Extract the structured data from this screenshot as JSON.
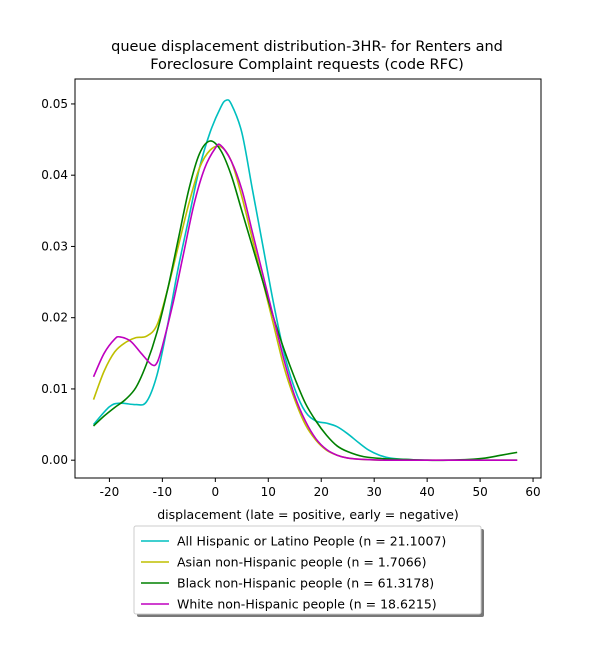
{
  "chart_data": {
    "type": "line",
    "title": [
      "queue displacement distribution-3HR-  for Renters and",
      "Foreclosure Complaint  requests (code RFC)"
    ],
    "xlabel": "displacement (late = positive, early = negative)",
    "ylabel": "",
    "xlim": [
      -26.5,
      61.5
    ],
    "ylim": [
      -0.0025,
      0.0535
    ],
    "xticks": [
      -20,
      -10,
      0,
      10,
      20,
      30,
      40,
      50,
      60
    ],
    "yticks": [
      0.0,
      0.01,
      0.02,
      0.03,
      0.04,
      0.05
    ],
    "ytick_labels": [
      "0.00",
      "0.01",
      "0.02",
      "0.03",
      "0.04",
      "0.05"
    ],
    "legend_position": "below",
    "series": [
      {
        "name": "All Hispanic or Latino People (n = 21.1007)",
        "color": "#00bfbf",
        "points": [
          [
            -23,
            0.005
          ],
          [
            -20,
            0.0075
          ],
          [
            -18,
            0.008
          ],
          [
            -15,
            0.0078
          ],
          [
            -13,
            0.0082
          ],
          [
            -11,
            0.012
          ],
          [
            -9,
            0.019
          ],
          [
            -7,
            0.027
          ],
          [
            -5,
            0.034
          ],
          [
            -3,
            0.041
          ],
          [
            -1,
            0.046
          ],
          [
            1,
            0.0495
          ],
          [
            2,
            0.0505
          ],
          [
            3,
            0.05
          ],
          [
            5,
            0.046
          ],
          [
            7,
            0.038
          ],
          [
            9,
            0.03
          ],
          [
            11,
            0.022
          ],
          [
            13,
            0.015
          ],
          [
            15,
            0.01
          ],
          [
            17,
            0.0068
          ],
          [
            19,
            0.0055
          ],
          [
            21,
            0.0052
          ],
          [
            23,
            0.0047
          ],
          [
            25,
            0.0037
          ],
          [
            27,
            0.0025
          ],
          [
            29,
            0.0014
          ],
          [
            31,
            0.0007
          ],
          [
            33,
            0.0003
          ],
          [
            36,
            0.0001
          ],
          [
            40,
            0.0
          ],
          [
            45,
            0.0
          ],
          [
            50,
            0.0
          ],
          [
            57,
            0.0
          ]
        ]
      },
      {
        "name": "Asian non-Hispanic people (n = 1.7066)",
        "color": "#bfbf00",
        "points": [
          [
            -23,
            0.0085
          ],
          [
            -21,
            0.0125
          ],
          [
            -19,
            0.0152
          ],
          [
            -17,
            0.0165
          ],
          [
            -15,
            0.0172
          ],
          [
            -13,
            0.0174
          ],
          [
            -11,
            0.019
          ],
          [
            -9,
            0.024
          ],
          [
            -7,
            0.03
          ],
          [
            -5,
            0.036
          ],
          [
            -3,
            0.041
          ],
          [
            -1,
            0.0435
          ],
          [
            1,
            0.044
          ],
          [
            3,
            0.042
          ],
          [
            5,
            0.037
          ],
          [
            7,
            0.031
          ],
          [
            9,
            0.025
          ],
          [
            11,
            0.019
          ],
          [
            13,
            0.013
          ],
          [
            15,
            0.0085
          ],
          [
            17,
            0.005
          ],
          [
            19,
            0.0028
          ],
          [
            21,
            0.0014
          ],
          [
            23,
            0.0007
          ],
          [
            25,
            0.0003
          ],
          [
            28,
            0.0001
          ],
          [
            32,
            0.0
          ],
          [
            40,
            0.0
          ],
          [
            50,
            0.0
          ],
          [
            57,
            0.0
          ]
        ]
      },
      {
        "name": "Black non-Hispanic people (n = 61.3178)",
        "color": "#008000",
        "points": [
          [
            -23,
            0.0048
          ],
          [
            -21,
            0.0062
          ],
          [
            -19,
            0.0074
          ],
          [
            -17,
            0.0085
          ],
          [
            -15,
            0.0102
          ],
          [
            -13,
            0.0135
          ],
          [
            -11,
            0.018
          ],
          [
            -9,
            0.024
          ],
          [
            -7,
            0.031
          ],
          [
            -5,
            0.038
          ],
          [
            -3,
            0.043
          ],
          [
            -1,
            0.0448
          ],
          [
            1,
            0.0435
          ],
          [
            3,
            0.04
          ],
          [
            5,
            0.035
          ],
          [
            7,
            0.03
          ],
          [
            9,
            0.025
          ],
          [
            11,
            0.02
          ],
          [
            13,
            0.0155
          ],
          [
            15,
            0.0115
          ],
          [
            17,
            0.008
          ],
          [
            19,
            0.0055
          ],
          [
            21,
            0.0035
          ],
          [
            23,
            0.002
          ],
          [
            25,
            0.0012
          ],
          [
            28,
            0.0005
          ],
          [
            32,
            0.0002
          ],
          [
            36,
            0.0001
          ],
          [
            40,
            0.0
          ],
          [
            44,
            0.0
          ],
          [
            48,
            0.0001
          ],
          [
            51,
            0.0003
          ],
          [
            54,
            0.0007
          ],
          [
            57,
            0.0011
          ]
        ]
      },
      {
        "name": "White non-Hispanic people (n = 18.6215)",
        "color": "#bf00bf",
        "points": [
          [
            -23,
            0.0117
          ],
          [
            -21,
            0.015
          ],
          [
            -19,
            0.017
          ],
          [
            -18,
            0.0173
          ],
          [
            -16,
            0.0167
          ],
          [
            -14,
            0.015
          ],
          [
            -12,
            0.0134
          ],
          [
            -11,
            0.0137
          ],
          [
            -10,
            0.016
          ],
          [
            -8,
            0.022
          ],
          [
            -6,
            0.029
          ],
          [
            -4,
            0.036
          ],
          [
            -2,
            0.041
          ],
          [
            0,
            0.0438
          ],
          [
            1,
            0.0442
          ],
          [
            3,
            0.042
          ],
          [
            5,
            0.038
          ],
          [
            7,
            0.032
          ],
          [
            9,
            0.026
          ],
          [
            11,
            0.02
          ],
          [
            13,
            0.014
          ],
          [
            15,
            0.009
          ],
          [
            17,
            0.0055
          ],
          [
            19,
            0.003
          ],
          [
            21,
            0.0015
          ],
          [
            23,
            0.0007
          ],
          [
            25,
            0.0003
          ],
          [
            28,
            0.0001
          ],
          [
            32,
            0.0
          ],
          [
            40,
            0.0
          ],
          [
            50,
            0.0
          ],
          [
            57,
            0.0
          ]
        ]
      }
    ]
  }
}
